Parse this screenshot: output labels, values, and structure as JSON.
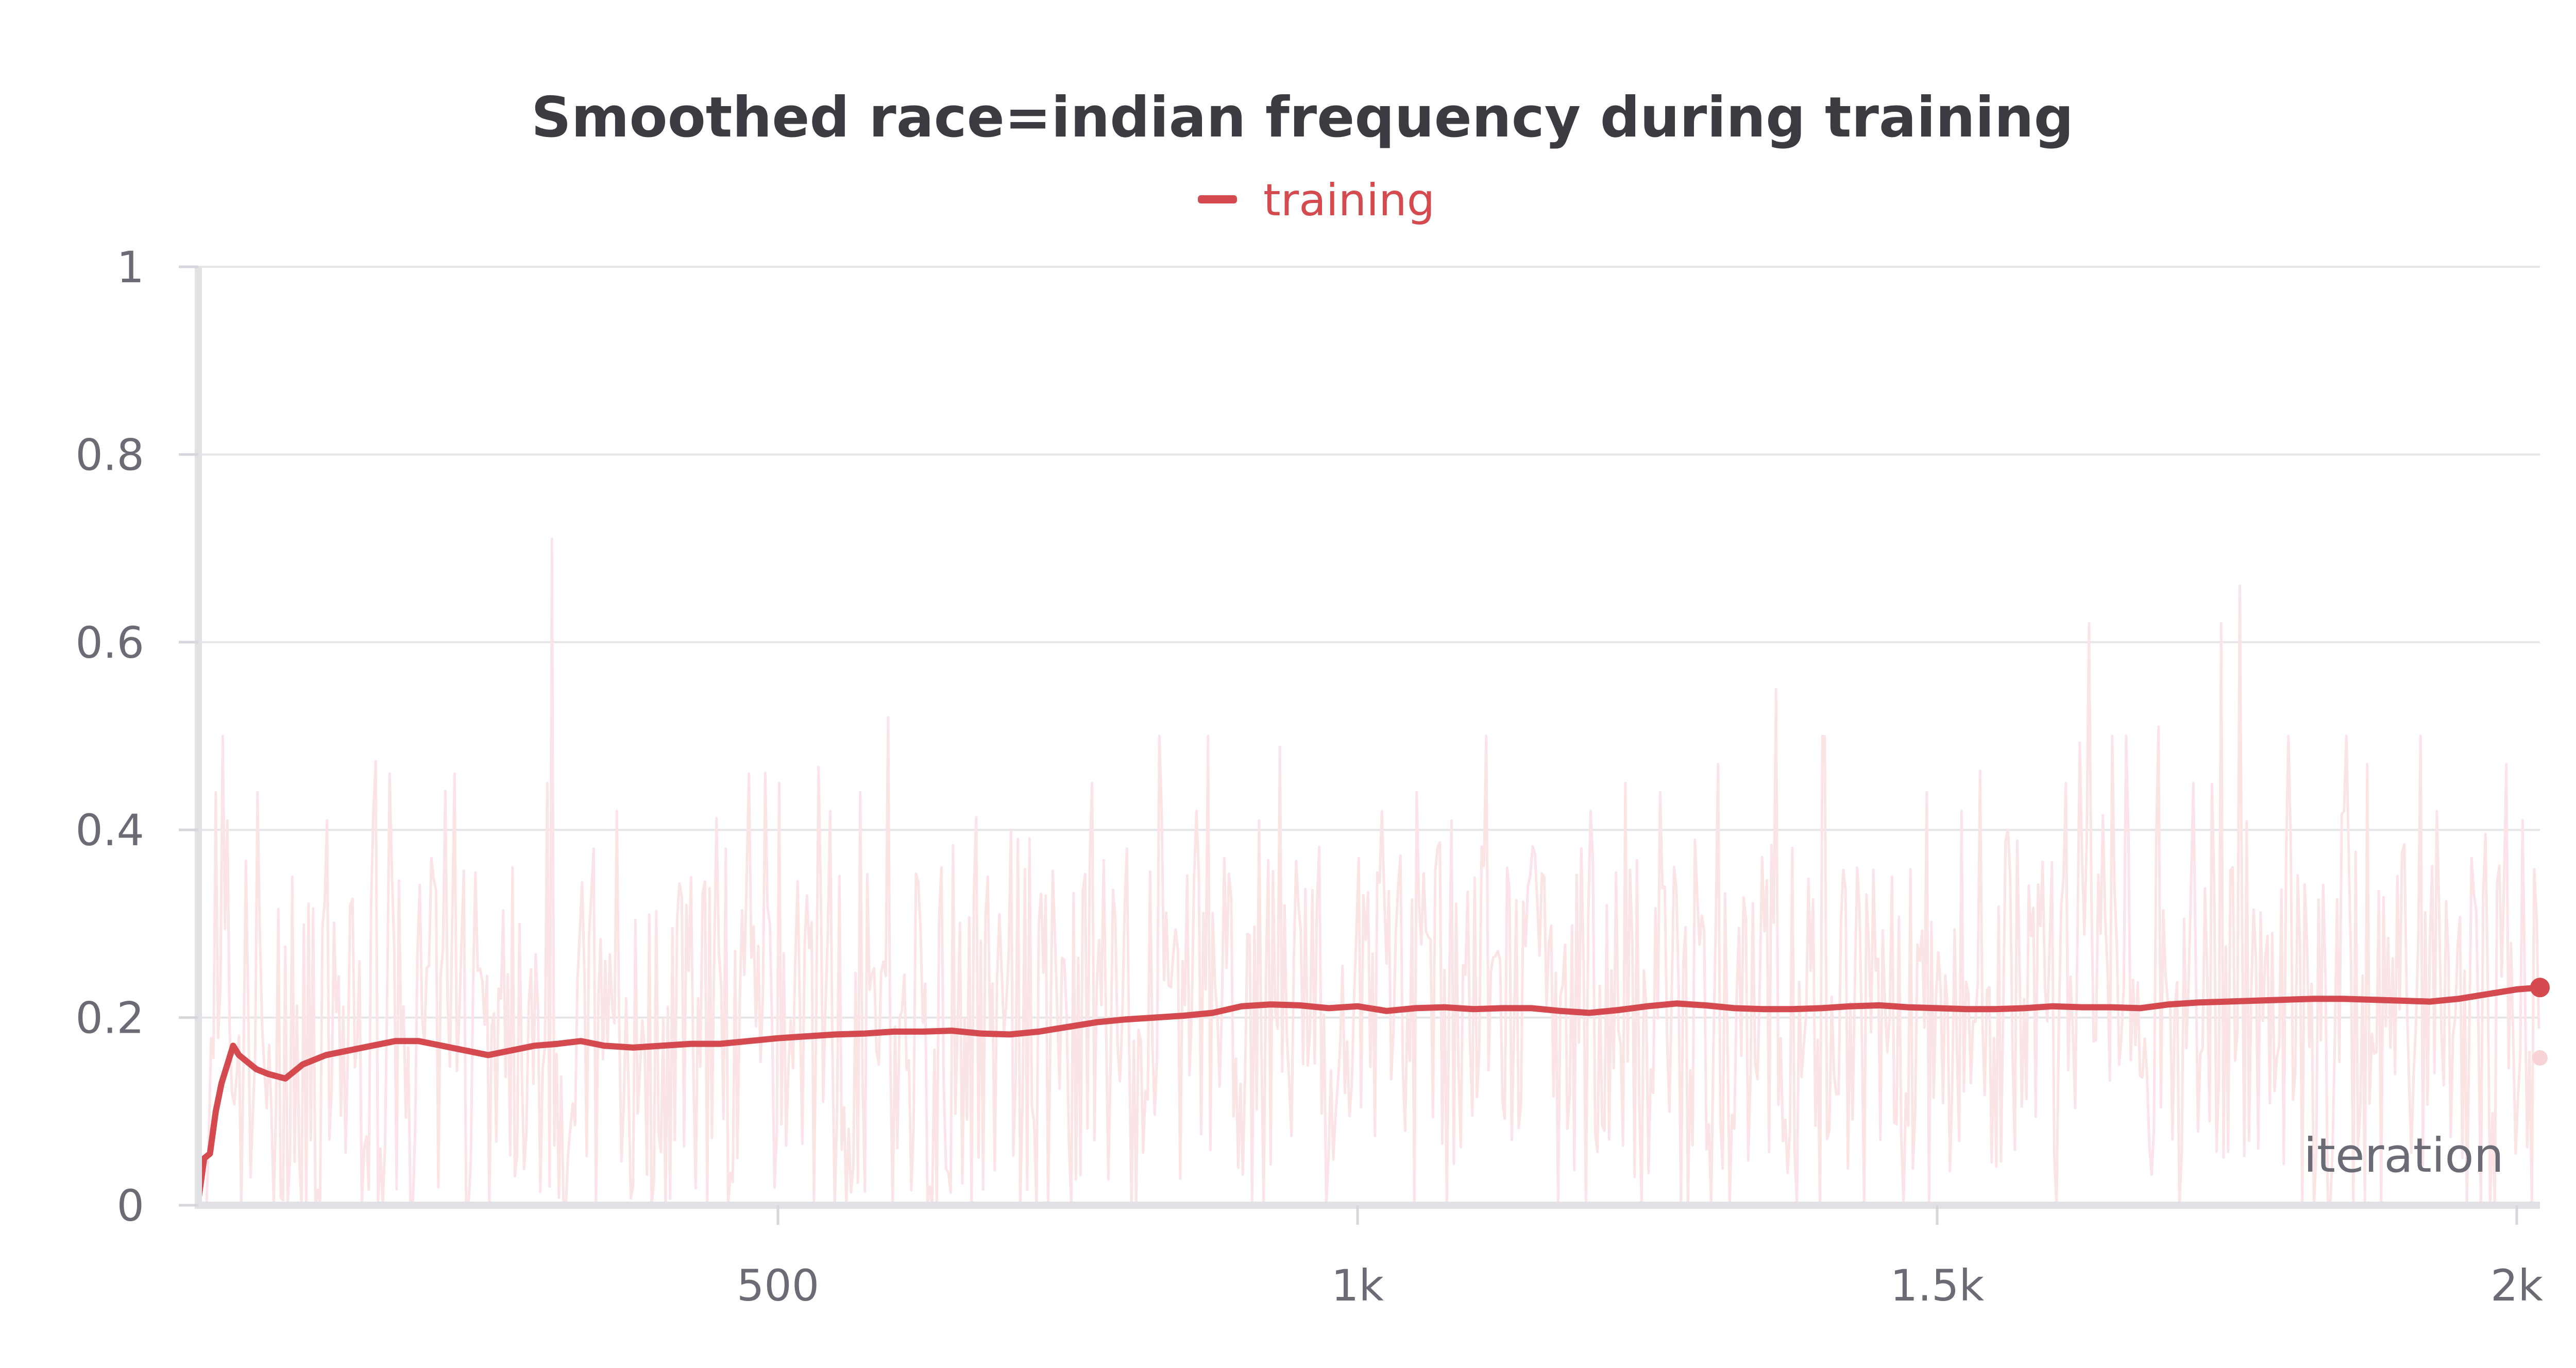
{
  "chart_data": {
    "type": "line",
    "title": "Smoothed race=indian frequency during training",
    "xlabel": "iteration",
    "ylabel": "",
    "xlim": [
      0,
      2020
    ],
    "ylim": [
      0,
      1
    ],
    "x_ticks": [
      500,
      1000,
      1500,
      2000
    ],
    "x_tick_labels": [
      "500",
      "1k",
      "1.5k",
      "2k"
    ],
    "y_ticks": [
      0,
      0.2,
      0.4,
      0.6,
      0.8,
      1
    ],
    "y_tick_labels": [
      "0",
      "0.2",
      "0.4",
      "0.6",
      "0.8",
      "1"
    ],
    "grid": true,
    "legend": "top-center",
    "series": [
      {
        "name": "training",
        "color": "#d44a4f",
        "raw_color": "#fbe4e5",
        "smoothed": {
          "x": [
            0,
            5,
            10,
            15,
            20,
            25,
            30,
            35,
            40,
            50,
            60,
            75,
            90,
            110,
            130,
            150,
            170,
            190,
            210,
            230,
            250,
            270,
            290,
            310,
            330,
            350,
            375,
            400,
            425,
            450,
            475,
            500,
            525,
            550,
            575,
            600,
            625,
            650,
            675,
            700,
            725,
            750,
            775,
            800,
            825,
            850,
            875,
            900,
            925,
            950,
            975,
            1000,
            1025,
            1050,
            1075,
            1100,
            1125,
            1150,
            1175,
            1200,
            1225,
            1250,
            1275,
            1300,
            1325,
            1350,
            1375,
            1400,
            1425,
            1450,
            1475,
            1500,
            1525,
            1550,
            1575,
            1600,
            1625,
            1650,
            1675,
            1700,
            1725,
            1750,
            1775,
            1800,
            1825,
            1850,
            1875,
            1900,
            1925,
            1950,
            1975,
            2000,
            2010,
            2020
          ],
          "y": [
            0.005,
            0.05,
            0.055,
            0.1,
            0.13,
            0.15,
            0.17,
            0.16,
            0.155,
            0.145,
            0.14,
            0.135,
            0.15,
            0.16,
            0.165,
            0.17,
            0.175,
            0.175,
            0.17,
            0.165,
            0.16,
            0.165,
            0.17,
            0.172,
            0.175,
            0.17,
            0.168,
            0.17,
            0.172,
            0.172,
            0.175,
            0.178,
            0.18,
            0.182,
            0.183,
            0.185,
            0.185,
            0.186,
            0.183,
            0.182,
            0.185,
            0.19,
            0.195,
            0.198,
            0.2,
            0.202,
            0.205,
            0.212,
            0.214,
            0.213,
            0.21,
            0.212,
            0.207,
            0.21,
            0.211,
            0.209,
            0.21,
            0.21,
            0.207,
            0.205,
            0.208,
            0.212,
            0.215,
            0.213,
            0.21,
            0.209,
            0.209,
            0.21,
            0.212,
            0.213,
            0.211,
            0.21,
            0.209,
            0.209,
            0.21,
            0.212,
            0.211,
            0.211,
            0.21,
            0.214,
            0.216,
            0.217,
            0.218,
            0.219,
            0.22,
            0.22,
            0.219,
            0.218,
            0.217,
            0.22,
            0.225,
            0.23,
            0.231,
            0.232
          ]
        },
        "raw_last_value": 0.157,
        "raw_peaks": {
          "x": [
            15,
            20,
            25,
            50,
            80,
            110,
            130,
            150,
            165,
            200,
            220,
            240,
            270,
            300,
            305,
            340,
            360,
            420,
            455,
            475,
            500,
            525,
            545,
            570,
            595,
            640,
            680,
            700,
            730,
            770,
            800,
            830,
            860,
            870,
            885,
            915,
            1000,
            1020,
            1050,
            1080,
            1110,
            1160,
            1200,
            1230,
            1260,
            1310,
            1360,
            1400,
            1460,
            1490,
            1520,
            1560,
            1610,
            1630,
            1690,
            1720,
            1745,
            1760,
            1800,
            1850,
            1870,
            1930,
            1960,
            1990,
            2005
          ],
          "y": [
            0.44,
            0.5,
            0.41,
            0.44,
            0.35,
            0.41,
            0.32,
            0.42,
            0.46,
            0.37,
            0.46,
            0.25,
            0.36,
            0.45,
            0.71,
            0.38,
            0.42,
            0.32,
            0.38,
            0.46,
            0.45,
            0.33,
            0.42,
            0.44,
            0.52,
            0.36,
            0.35,
            0.4,
            0.33,
            0.45,
            0.38,
            0.42,
            0.42,
            0.5,
            0.37,
            0.41,
            0.37,
            0.42,
            0.44,
            0.41,
            0.5,
            0.35,
            0.42,
            0.45,
            0.44,
            0.47,
            0.55,
            0.5,
            0.35,
            0.44,
            0.42,
            0.4,
            0.45,
            0.62,
            0.51,
            0.45,
            0.62,
            0.66,
            0.37,
            0.42,
            0.47,
            0.42,
            0.37,
            0.47,
            0.41
          ]
        }
      }
    ]
  }
}
